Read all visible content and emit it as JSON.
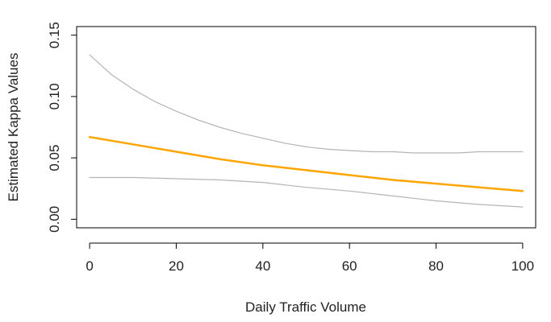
{
  "chart_data": {
    "type": "line",
    "xlabel": "Daily Traffic Volume",
    "ylabel": "Estimated Kappa Values",
    "xlim": [
      -3,
      103
    ],
    "ylim": [
      -0.007,
      0.157
    ],
    "x_ticks": [
      0,
      20,
      40,
      60,
      80,
      100
    ],
    "y_ticks": [
      0.0,
      0.05,
      0.1,
      0.15
    ],
    "x_tick_labels": [
      "0",
      "20",
      "40",
      "60",
      "80",
      "100"
    ],
    "y_tick_labels": [
      "0.00",
      "0.05",
      "0.10",
      "0.15"
    ],
    "grid": false,
    "legend": false,
    "series": [
      {
        "role": "estimate",
        "color": "#ffa500",
        "x": [
          0,
          10,
          20,
          30,
          40,
          50,
          60,
          70,
          80,
          90,
          100
        ],
        "y": [
          0.067,
          0.061,
          0.055,
          0.049,
          0.044,
          0.04,
          0.036,
          0.032,
          0.029,
          0.026,
          0.023
        ]
      },
      {
        "role": "upper-bound",
        "color": "#b4b4b4",
        "x": [
          0,
          5,
          10,
          15,
          20,
          25,
          30,
          35,
          40,
          45,
          50,
          55,
          60,
          65,
          70,
          75,
          80,
          85,
          90,
          95,
          100
        ],
        "y": [
          0.134,
          0.118,
          0.106,
          0.096,
          0.088,
          0.081,
          0.075,
          0.07,
          0.066,
          0.062,
          0.059,
          0.057,
          0.056,
          0.055,
          0.055,
          0.054,
          0.054,
          0.054,
          0.055,
          0.055,
          0.055
        ]
      },
      {
        "role": "lower-bound",
        "color": "#b4b4b4",
        "x": [
          0,
          10,
          20,
          30,
          40,
          50,
          60,
          70,
          80,
          90,
          100
        ],
        "y": [
          0.034,
          0.034,
          0.033,
          0.032,
          0.03,
          0.026,
          0.023,
          0.019,
          0.015,
          0.012,
          0.01
        ]
      }
    ]
  }
}
